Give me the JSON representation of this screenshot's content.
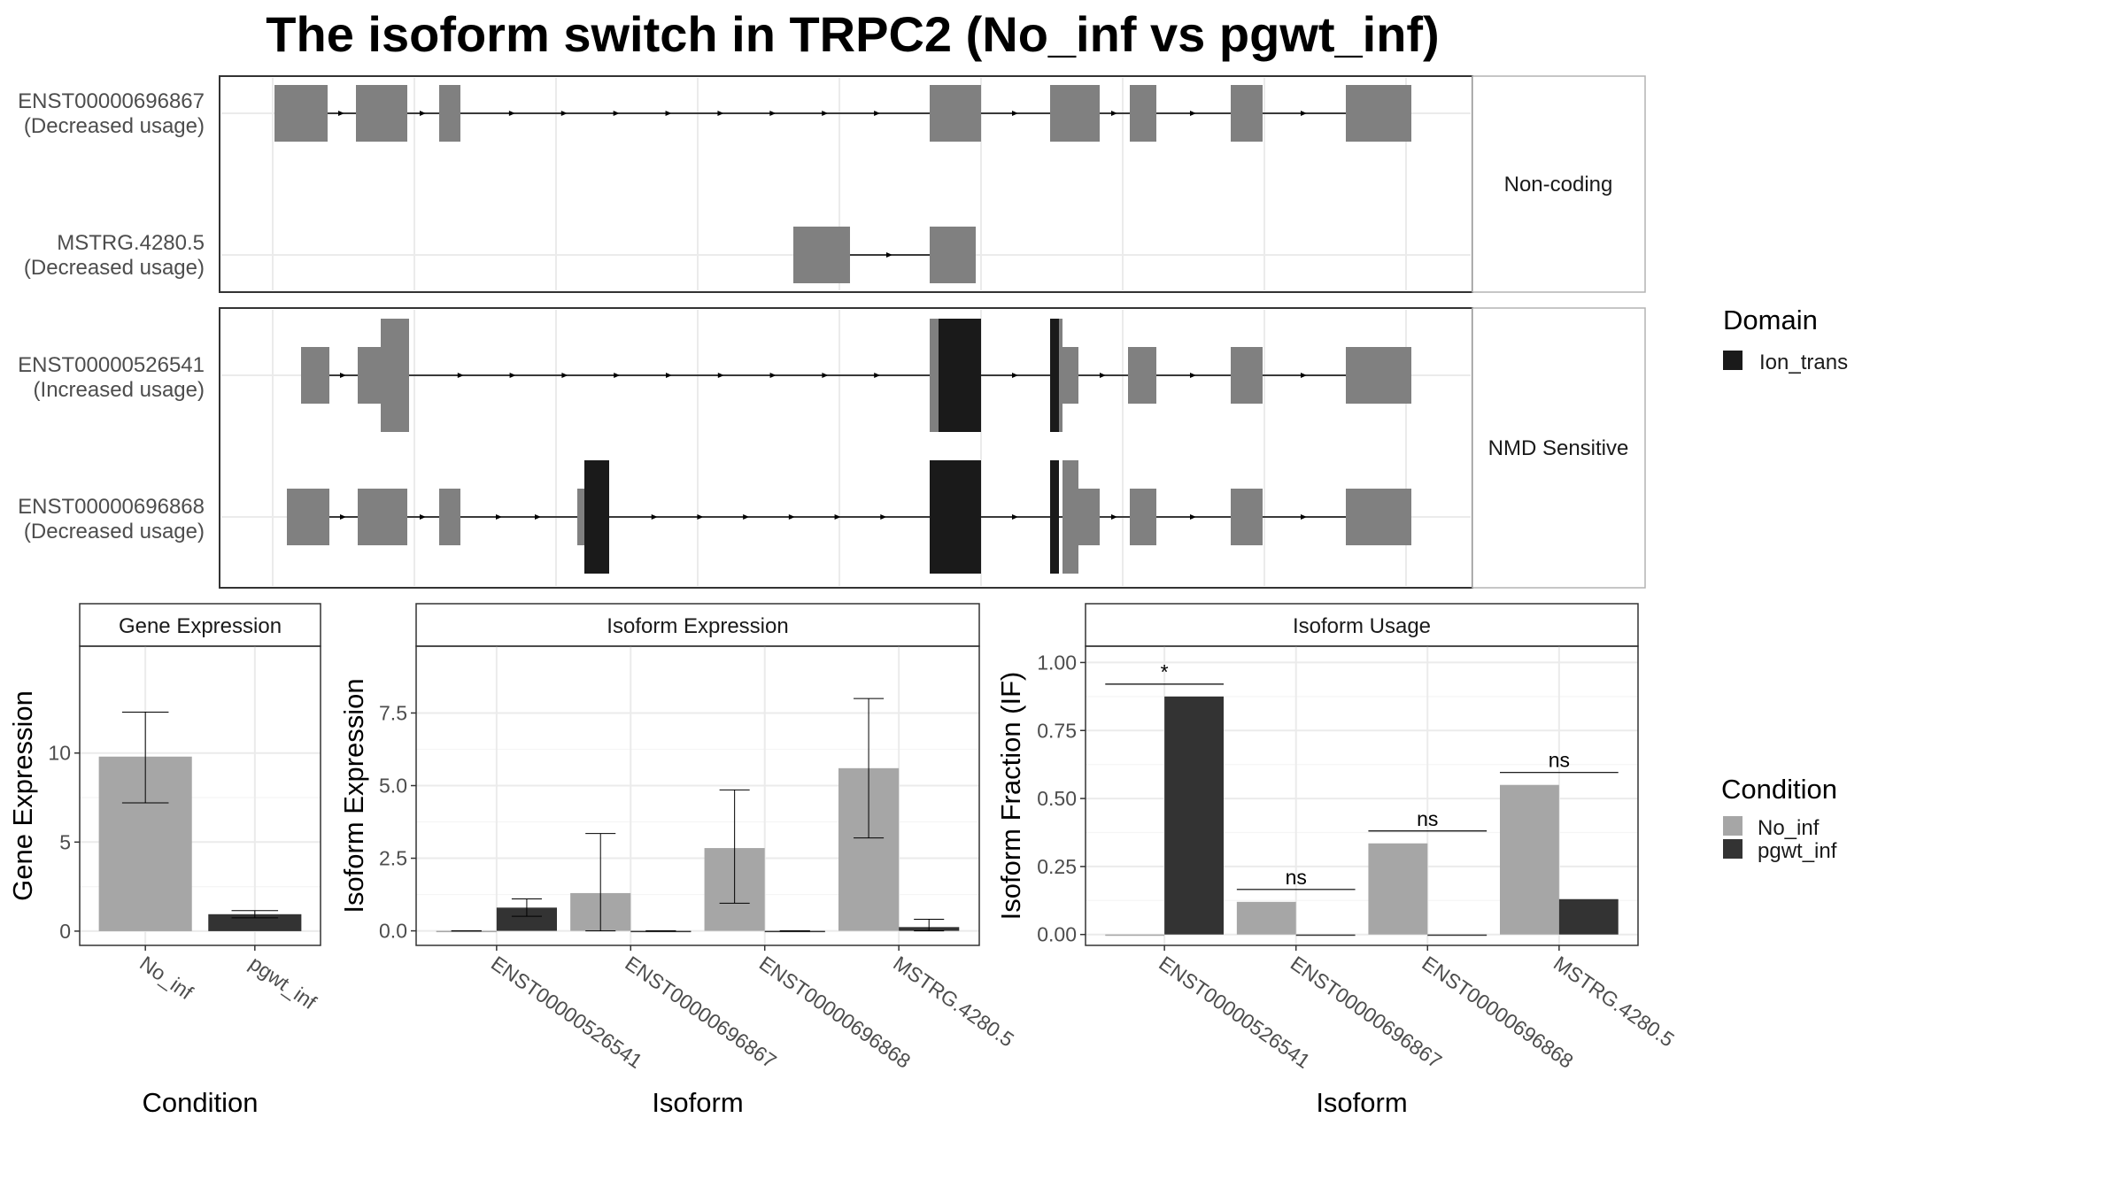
{
  "title": "The isoform switch in TRPC2 (No_inf vs pgwt_inf)",
  "structure": {
    "groups": [
      {
        "label": "Non-coding",
        "isoforms": [
          {
            "id": "ENST00000696867",
            "usage": "(Decreased usage)"
          },
          {
            "id": "MSTRG.4280.5",
            "usage": "(Decreased usage)"
          }
        ]
      },
      {
        "label": "NMD Sensitive",
        "isoforms": [
          {
            "id": "ENST00000526541",
            "usage": "(Increased usage)"
          },
          {
            "id": "ENST00000696868",
            "usage": "(Decreased usage)"
          }
        ]
      }
    ],
    "domain_legend": {
      "title": "Domain",
      "items": [
        {
          "label": "Ion_trans",
          "color": "#1a1a1a"
        }
      ]
    }
  },
  "colors": {
    "No_inf": "#a6a6a6",
    "pgwt_inf": "#333333",
    "exon": "#808080",
    "domain": "#1a1a1a"
  },
  "condition_legend": {
    "title": "Condition",
    "items": [
      "No_inf",
      "pgwt_inf"
    ]
  },
  "chart_data": [
    {
      "type": "bar",
      "title": "Gene Expression",
      "xlabel": "Condition",
      "ylabel": "Gene Expression",
      "categories": [
        "No_inf",
        "pgwt_inf"
      ],
      "values": [
        9.8,
        0.95
      ],
      "error": [
        [
          7.2,
          12.3
        ],
        [
          0.75,
          1.15
        ]
      ],
      "ylim": [
        -0.8,
        16
      ],
      "yticks": [
        0,
        5,
        10
      ],
      "ytick_labels": [
        "0",
        "5",
        "10"
      ]
    },
    {
      "type": "bar",
      "title": "Isoform Expression",
      "xlabel": "Isoform",
      "ylabel": "Isoform Expression",
      "categories": [
        "ENST00000526541",
        "ENST00000696867",
        "ENST00000696868",
        "MSTRG.4280.5"
      ],
      "series": [
        {
          "name": "No_inf",
          "values": [
            0.0,
            1.3,
            2.85,
            5.6
          ],
          "error": [
            [
              0.0,
              0.0
            ],
            [
              0.0,
              3.35
            ],
            [
              0.95,
              4.85
            ],
            [
              3.2,
              8.0
            ]
          ]
        },
        {
          "name": "pgwt_inf",
          "values": [
            0.8,
            0.0,
            0.0,
            0.13
          ],
          "error": [
            [
              0.5,
              1.1
            ],
            [
              0.0,
              0.0
            ],
            [
              0.0,
              0.0
            ],
            [
              0.0,
              0.4
            ]
          ]
        }
      ],
      "ylim": [
        -0.5,
        9.8
      ],
      "yticks": [
        0,
        2.5,
        5,
        7.5
      ],
      "ytick_labels": [
        "0.0",
        "2.5",
        "5.0",
        "7.5"
      ]
    },
    {
      "type": "bar",
      "title": "Isoform Usage",
      "xlabel": "Isoform",
      "ylabel": "Isoform Fraction (IF)",
      "categories": [
        "ENST00000526541",
        "ENST00000696867",
        "ENST00000696868",
        "MSTRG.4280.5"
      ],
      "series": [
        {
          "name": "No_inf",
          "values": [
            0.0,
            0.12,
            0.335,
            0.55
          ]
        },
        {
          "name": "pgwt_inf",
          "values": [
            0.875,
            0.0,
            0.0,
            0.13
          ]
        }
      ],
      "significance": [
        "*",
        "ns",
        "ns",
        "ns"
      ],
      "ylim": [
        -0.04,
        1.06
      ],
      "yticks": [
        0,
        0.25,
        0.5,
        0.75,
        1.0
      ],
      "ytick_labels": [
        "0.00",
        "0.25",
        "0.50",
        "0.75",
        "1.00"
      ]
    }
  ]
}
